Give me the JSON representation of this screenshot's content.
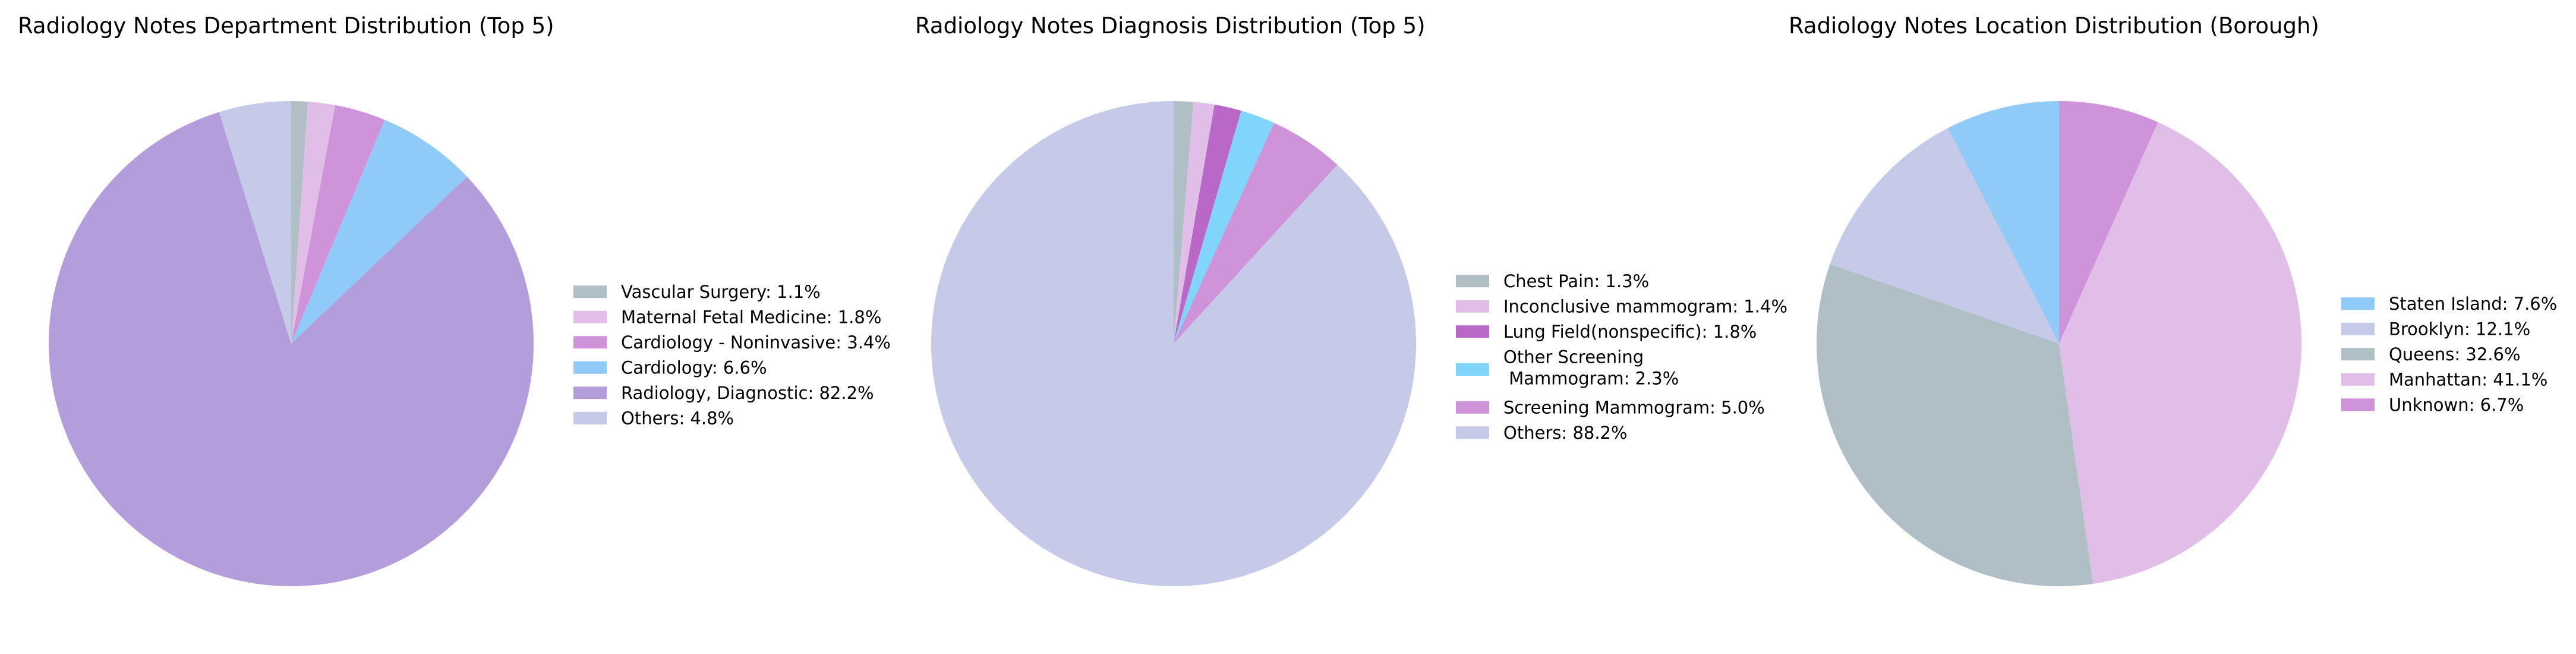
{
  "chart_data": [
    {
      "type": "pie",
      "title": "Radiology Notes Department Distribution (Top 5)",
      "start_angle_deg": 90,
      "direction": "clockwise",
      "legend_position": "right",
      "slices": [
        {
          "label": "Vascular Surgery: 1.1%",
          "value": 1.1,
          "color": "#b0bec5"
        },
        {
          "label": "Maternal Fetal Medicine: 1.8%",
          "value": 1.8,
          "color": "#e1bee7"
        },
        {
          "label": "Cardiology - Noninvasive: 3.4%",
          "value": 3.4,
          "color": "#ce93d8"
        },
        {
          "label": "Cardiology: 6.6%",
          "value": 6.6,
          "color": "#90caf9"
        },
        {
          "label": "Radiology, Diagnostic: 82.2%",
          "value": 82.2,
          "color": "#b39ddb"
        },
        {
          "label": "Others: 4.8%",
          "value": 4.8,
          "color": "#c5cae9"
        }
      ]
    },
    {
      "type": "pie",
      "title": "Radiology Notes Diagnosis Distribution (Top 5)",
      "start_angle_deg": 90,
      "direction": "clockwise",
      "legend_position": "right",
      "slices": [
        {
          "label": "Chest Pain: 1.3%",
          "value": 1.3,
          "color": "#b0bec5"
        },
        {
          "label": "Inconclusive mammogram: 1.4%",
          "value": 1.4,
          "color": "#e1bee7"
        },
        {
          "label": "Lung Field(nonspecific): 1.8%",
          "value": 1.8,
          "color": "#ba68c8"
        },
        {
          "label": "Other Screening\n Mammogram: 2.3%",
          "value": 2.3,
          "color": "#81d4fa"
        },
        {
          "label": "Screening Mammogram: 5.0%",
          "value": 5.0,
          "color": "#ce93d8"
        },
        {
          "label": "Others: 88.2%",
          "value": 88.2,
          "color": "#c5cae9"
        }
      ]
    },
    {
      "type": "pie",
      "title": "Radiology Notes Location Distribution (Borough)",
      "start_angle_deg": 90,
      "direction": "counterclockwise",
      "legend_position": "right",
      "slices": [
        {
          "label": "Staten Island: 7.6%",
          "value": 7.6,
          "color": "#90caf9"
        },
        {
          "label": "Brooklyn: 12.1%",
          "value": 12.1,
          "color": "#c5cae9"
        },
        {
          "label": "Queens: 32.6%",
          "value": 32.6,
          "color": "#b0bec5"
        },
        {
          "label": "Manhattan: 41.1%",
          "value": 41.1,
          "color": "#e1bee7"
        },
        {
          "label": "Unknown: 6.7%",
          "value": 6.7,
          "color": "#ce93d8"
        }
      ]
    }
  ]
}
